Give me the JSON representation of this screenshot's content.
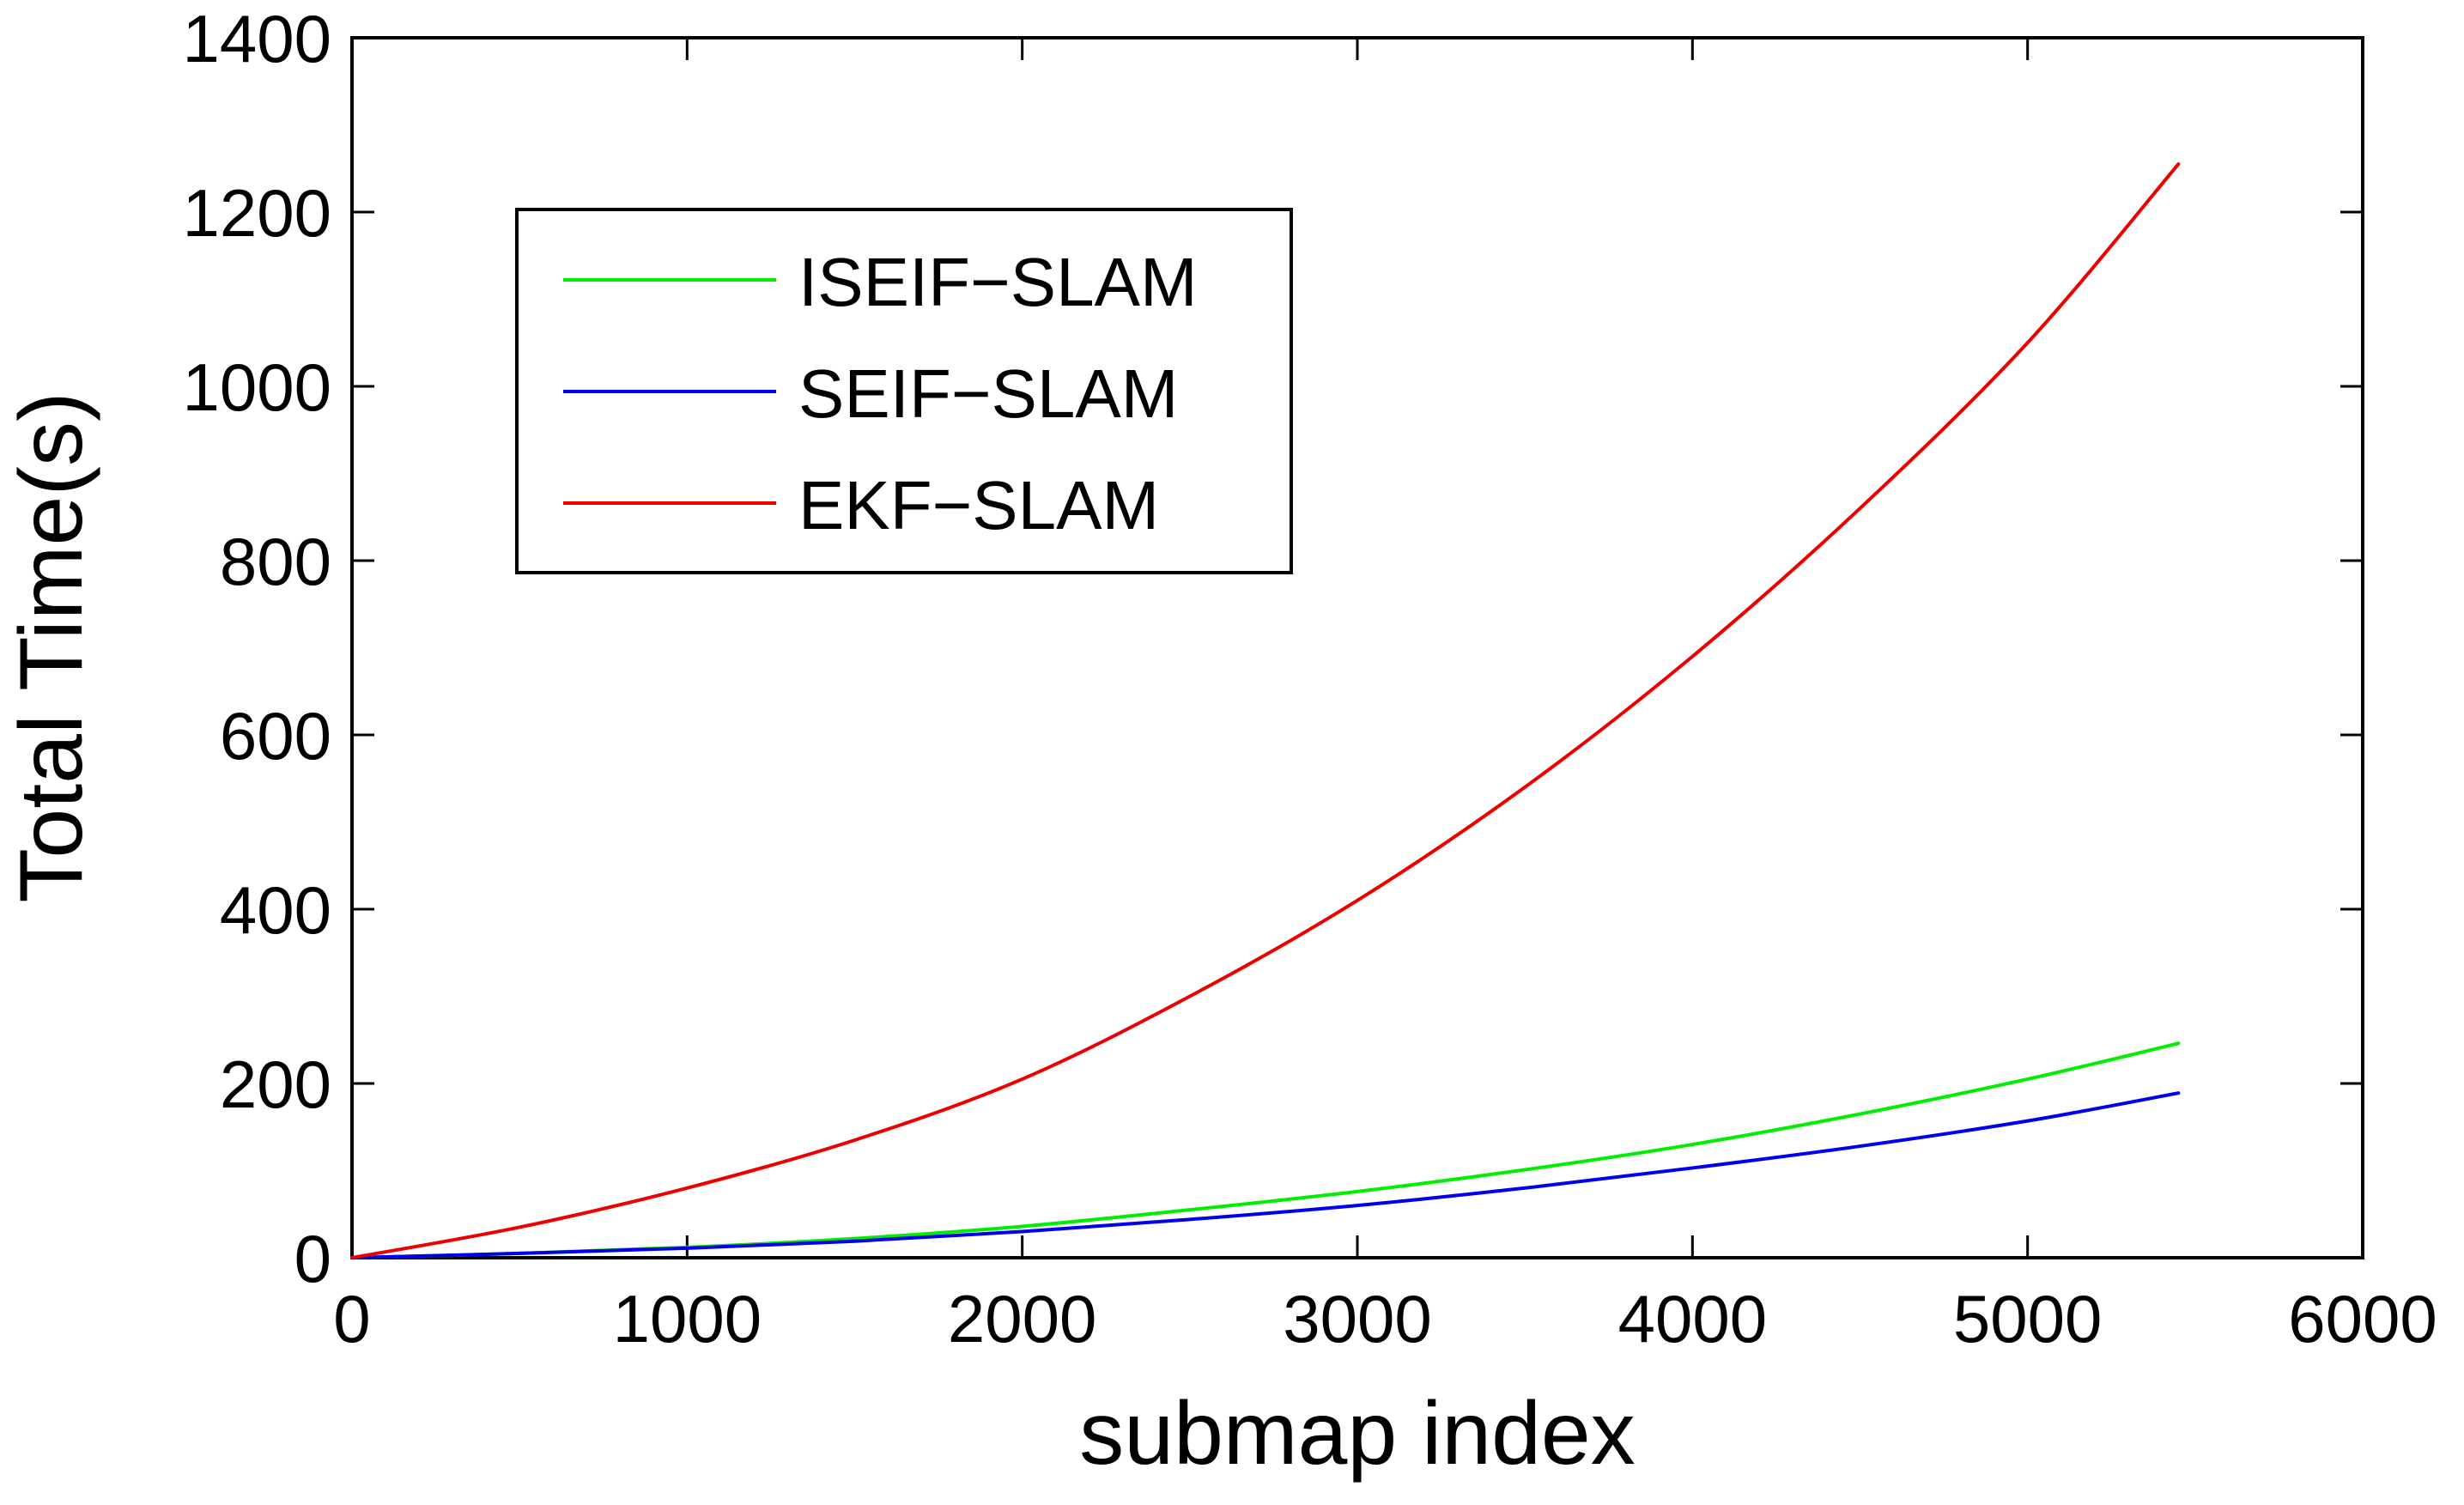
{
  "chart_data": {
    "type": "line",
    "title": "",
    "xlabel": "submap index",
    "ylabel": "Total Time(s)",
    "xlim": [
      0,
      6000
    ],
    "ylim": [
      0,
      1400
    ],
    "xticks": [
      0,
      1000,
      2000,
      3000,
      4000,
      5000,
      6000
    ],
    "yticks": [
      0,
      200,
      400,
      600,
      800,
      1000,
      1200,
      1400
    ],
    "xtick_labels": [
      "0",
      "1000",
      "2000",
      "3000",
      "4000",
      "5000",
      "6000"
    ],
    "ytick_labels": [
      "0",
      "200",
      "400",
      "600",
      "800",
      "1000",
      "1200",
      "1400"
    ],
    "grid": false,
    "legend_position": "top-left",
    "series": [
      {
        "name": "ISEIF−SLAM",
        "color": "#00ee00",
        "x": [
          0,
          500,
          1000,
          1500,
          2000,
          2500,
          3000,
          3500,
          4000,
          4500,
          5000,
          5450
        ],
        "y": [
          0,
          5,
          12,
          22,
          36,
          55,
          76,
          101,
          130,
          165,
          205,
          246
        ]
      },
      {
        "name": "SEIF−SLAM",
        "color": "#0000ee",
        "x": [
          0,
          500,
          1000,
          1500,
          2000,
          2500,
          3000,
          3500,
          4000,
          4500,
          5000,
          5450
        ],
        "y": [
          0,
          5,
          11,
          19,
          30,
          44,
          60,
          80,
          103,
          128,
          157,
          189
        ]
      },
      {
        "name": "EKF−SLAM",
        "color": "#ee0000",
        "x": [
          0,
          500,
          1000,
          1500,
          2000,
          2500,
          3000,
          3500,
          4000,
          4500,
          5000,
          5450
        ],
        "y": [
          0,
          35,
          80,
          135,
          205,
          300,
          410,
          540,
          690,
          860,
          1050,
          1255
        ]
      }
    ]
  }
}
